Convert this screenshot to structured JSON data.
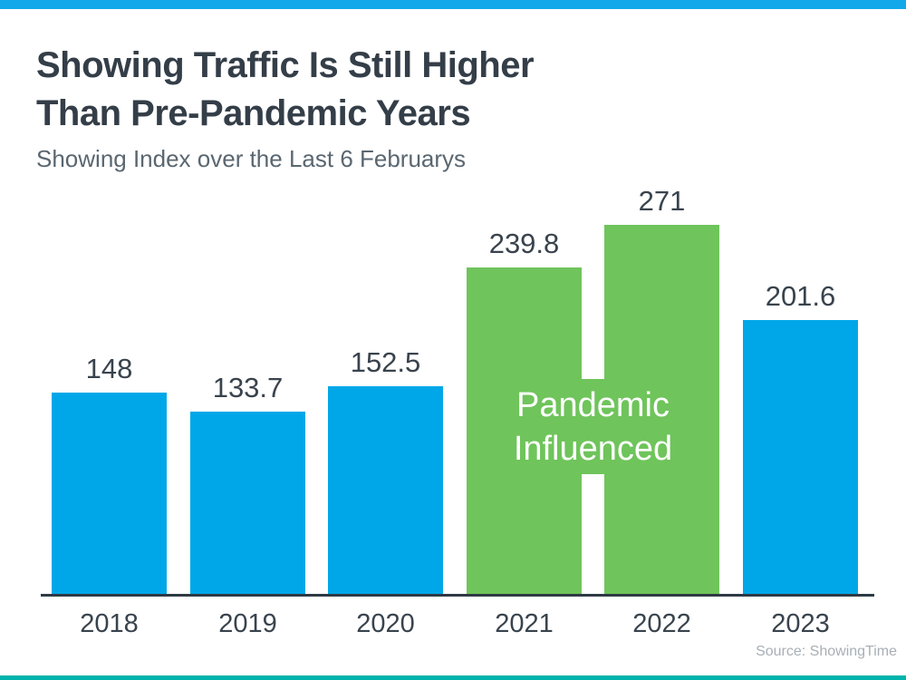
{
  "branding": {
    "top_bar_color": "#12a8e9",
    "bottom_bar_color": "#00b3ab"
  },
  "header": {
    "title_line1": "Showing Traffic Is Still Higher",
    "title_line2": "Than Pre-Pandemic Years",
    "subtitle": "Showing Index over the Last 6 Februarys"
  },
  "chart_data": {
    "type": "bar",
    "title": "Showing Traffic Is Still Higher Than Pre-Pandemic Years",
    "subtitle": "Showing Index over the Last 6 Februarys",
    "categories": [
      "2018",
      "2019",
      "2020",
      "2021",
      "2022",
      "2023"
    ],
    "values": [
      148,
      133.7,
      152.5,
      239.8,
      271,
      201.6
    ],
    "value_labels": [
      "148",
      "133.7",
      "152.5",
      "239.8",
      "271",
      "201.6"
    ],
    "bar_colors": [
      "#00a7e8",
      "#00a7e8",
      "#00a7e8",
      "#6fc45b",
      "#6fc45b",
      "#00a7e8"
    ],
    "blue_color": "#00a7e8",
    "green_color": "#6fc45b",
    "annotation": {
      "line1": "Pandemic",
      "line2": "Influenced",
      "covers": [
        "2021",
        "2022"
      ],
      "text_color": "#ffffff",
      "box_color": "#6fc45b"
    },
    "xlabel": "",
    "ylabel": "",
    "ylim": [
      0,
      280
    ],
    "grid": false,
    "legend": false,
    "data_labels_shown": true,
    "source": "Source: ShowingTime"
  },
  "footer": {
    "source": "Source: ShowingTime"
  }
}
